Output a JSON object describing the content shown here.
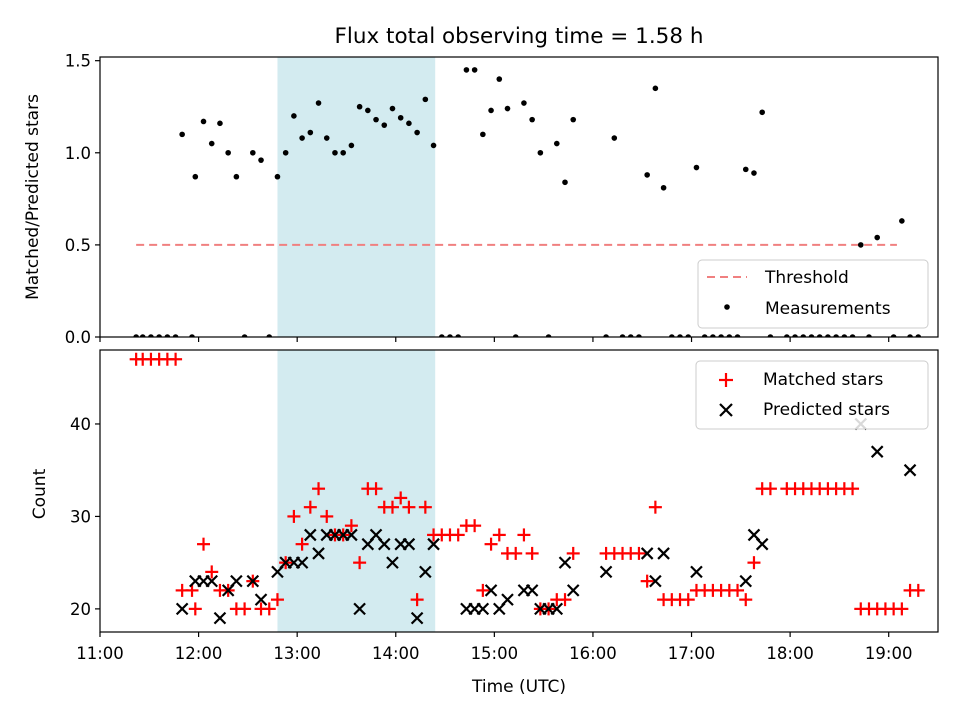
{
  "chart_data": [
    {
      "type": "scatter",
      "title": "Flux total observing time = 1.58 h",
      "ylabel": "Matched/Predicted stars",
      "ylim": [
        0,
        1.52
      ],
      "yticks": [
        "0.0",
        "0.5",
        "1.0",
        "1.5"
      ],
      "shaded_span": {
        "start": "12:48",
        "end": "14:24",
        "color": "#d3ebf0"
      },
      "legend": {
        "position": "lower-right",
        "entries": [
          {
            "name": "Threshold",
            "color": "#f08080"
          },
          {
            "name": "Measurements",
            "color": "#000000"
          }
        ]
      },
      "threshold": {
        "name": "Threshold",
        "value": 0.5,
        "x_start": "11:22",
        "x_end": "19:05",
        "color": "#f08080"
      },
      "measurements": {
        "name": "Measurements",
        "color": "#000000",
        "points": [
          [
            "11:22",
            0
          ],
          [
            "11:26",
            0
          ],
          [
            "11:31",
            0
          ],
          [
            "11:36",
            0
          ],
          [
            "11:41",
            0
          ],
          [
            "11:46",
            0
          ],
          [
            "11:56",
            0
          ],
          [
            "11:50",
            1.1
          ],
          [
            "11:58",
            0.87
          ],
          [
            "12:03",
            1.17
          ],
          [
            "12:08",
            1.05
          ],
          [
            "12:13",
            1.16
          ],
          [
            "12:18",
            1.0
          ],
          [
            "12:23",
            0.87
          ],
          [
            "12:28",
            0
          ],
          [
            "12:33",
            1.0
          ],
          [
            "12:38",
            0.96
          ],
          [
            "12:43",
            0
          ],
          [
            "12:48",
            0.87
          ],
          [
            "12:53",
            1.0
          ],
          [
            "12:58",
            1.2
          ],
          [
            "13:03",
            1.08
          ],
          [
            "13:08",
            1.11
          ],
          [
            "13:13",
            1.27
          ],
          [
            "13:18",
            1.08
          ],
          [
            "13:23",
            1.0
          ],
          [
            "13:28",
            1.0
          ],
          [
            "13:33",
            1.04
          ],
          [
            "13:38",
            1.25
          ],
          [
            "13:43",
            1.23
          ],
          [
            "13:48",
            1.18
          ],
          [
            "13:53",
            1.15
          ],
          [
            "13:58",
            1.24
          ],
          [
            "14:03",
            1.19
          ],
          [
            "14:08",
            1.16
          ],
          [
            "14:13",
            1.11
          ],
          [
            "14:18",
            1.29
          ],
          [
            "14:23",
            1.04
          ],
          [
            "14:28",
            0
          ],
          [
            "14:33",
            0
          ],
          [
            "14:38",
            0
          ],
          [
            "14:43",
            1.45
          ],
          [
            "14:48",
            1.45
          ],
          [
            "14:53",
            1.1
          ],
          [
            "14:58",
            1.23
          ],
          [
            "15:03",
            1.4
          ],
          [
            "15:08",
            1.24
          ],
          [
            "15:13",
            0
          ],
          [
            "15:18",
            1.27
          ],
          [
            "15:23",
            1.18
          ],
          [
            "15:28",
            1.0
          ],
          [
            "15:33",
            0
          ],
          [
            "15:38",
            1.05
          ],
          [
            "15:43",
            0.84
          ],
          [
            "15:48",
            1.18
          ],
          [
            "16:08",
            0
          ],
          [
            "16:13",
            1.08
          ],
          [
            "16:18",
            0
          ],
          [
            "16:23",
            0
          ],
          [
            "16:28",
            0
          ],
          [
            "16:33",
            0.88
          ],
          [
            "16:38",
            1.35
          ],
          [
            "16:43",
            0.81
          ],
          [
            "16:48",
            0
          ],
          [
            "16:53",
            0
          ],
          [
            "16:58",
            0
          ],
          [
            "17:03",
            0.92
          ],
          [
            "17:08",
            0
          ],
          [
            "17:13",
            0
          ],
          [
            "17:18",
            0
          ],
          [
            "17:23",
            0
          ],
          [
            "17:28",
            0
          ],
          [
            "17:33",
            0.91
          ],
          [
            "17:38",
            0.89
          ],
          [
            "17:43",
            1.22
          ],
          [
            "17:48",
            0
          ],
          [
            "17:58",
            0
          ],
          [
            "18:03",
            0
          ],
          [
            "18:08",
            0
          ],
          [
            "18:13",
            0
          ],
          [
            "18:18",
            0
          ],
          [
            "18:23",
            0
          ],
          [
            "18:28",
            0
          ],
          [
            "18:33",
            0
          ],
          [
            "18:38",
            0
          ],
          [
            "18:43",
            0.5
          ],
          [
            "18:48",
            0
          ],
          [
            "18:53",
            0.54
          ],
          [
            "19:03",
            0
          ],
          [
            "19:08",
            0.63
          ],
          [
            "19:13",
            0
          ],
          [
            "19:18",
            0
          ]
        ]
      }
    },
    {
      "type": "scatter",
      "xlabel": "Time (UTC)",
      "ylabel": "Count",
      "xlim": [
        "11:00",
        "19:30"
      ],
      "xticks": [
        "11:00",
        "12:00",
        "13:00",
        "14:00",
        "15:00",
        "16:00",
        "17:00",
        "18:00",
        "19:00"
      ],
      "ylim": [
        17.5,
        48
      ],
      "yticks": [
        "20",
        "30",
        "40"
      ],
      "shaded_span": {
        "start": "12:48",
        "end": "14:24",
        "color": "#d3ebf0"
      },
      "legend": {
        "position": "upper-right",
        "entries": [
          {
            "name": "Matched stars",
            "color": "#ff0000"
          },
          {
            "name": "Predicted stars",
            "color": "#000000"
          }
        ]
      },
      "series": [
        {
          "name": "Matched stars",
          "marker": "plus",
          "color": "#ff0000",
          "points": [
            [
              "11:22",
              47
            ],
            [
              "11:26",
              47
            ],
            [
              "11:31",
              47
            ],
            [
              "11:36",
              47
            ],
            [
              "11:41",
              47
            ],
            [
              "11:46",
              47
            ],
            [
              "11:50",
              22
            ],
            [
              "11:56",
              22
            ],
            [
              "11:58",
              20
            ],
            [
              "12:03",
              27
            ],
            [
              "12:08",
              24
            ],
            [
              "12:13",
              22
            ],
            [
              "12:18",
              22
            ],
            [
              "12:23",
              20
            ],
            [
              "12:28",
              20
            ],
            [
              "12:33",
              23
            ],
            [
              "12:38",
              20
            ],
            [
              "12:43",
              20
            ],
            [
              "12:48",
              21
            ],
            [
              "12:53",
              25
            ],
            [
              "12:58",
              30
            ],
            [
              "13:03",
              27
            ],
            [
              "13:08",
              31
            ],
            [
              "13:13",
              33
            ],
            [
              "13:18",
              30
            ],
            [
              "13:23",
              28
            ],
            [
              "13:28",
              28
            ],
            [
              "13:33",
              29
            ],
            [
              "13:38",
              25
            ],
            [
              "13:43",
              33
            ],
            [
              "13:48",
              33
            ],
            [
              "13:53",
              31
            ],
            [
              "13:58",
              31
            ],
            [
              "14:03",
              32
            ],
            [
              "14:08",
              31
            ],
            [
              "14:13",
              21
            ],
            [
              "14:18",
              31
            ],
            [
              "14:23",
              28
            ],
            [
              "14:28",
              28
            ],
            [
              "14:33",
              28
            ],
            [
              "14:38",
              28
            ],
            [
              "14:43",
              29
            ],
            [
              "14:48",
              29
            ],
            [
              "14:53",
              22
            ],
            [
              "14:58",
              27
            ],
            [
              "15:03",
              28
            ],
            [
              "15:08",
              26
            ],
            [
              "15:13",
              26
            ],
            [
              "15:18",
              28
            ],
            [
              "15:23",
              26
            ],
            [
              "15:28",
              20
            ],
            [
              "15:33",
              20
            ],
            [
              "15:38",
              21
            ],
            [
              "15:43",
              21
            ],
            [
              "15:48",
              26
            ],
            [
              "16:08",
              26
            ],
            [
              "16:13",
              26
            ],
            [
              "16:18",
              26
            ],
            [
              "16:23",
              26
            ],
            [
              "16:28",
              26
            ],
            [
              "16:33",
              23
            ],
            [
              "16:38",
              31
            ],
            [
              "16:43",
              21
            ],
            [
              "16:48",
              21
            ],
            [
              "16:53",
              21
            ],
            [
              "16:58",
              21
            ],
            [
              "17:03",
              22
            ],
            [
              "17:08",
              22
            ],
            [
              "17:13",
              22
            ],
            [
              "17:18",
              22
            ],
            [
              "17:23",
              22
            ],
            [
              "17:28",
              22
            ],
            [
              "17:33",
              21
            ],
            [
              "17:38",
              25
            ],
            [
              "17:43",
              33
            ],
            [
              "17:48",
              33
            ],
            [
              "17:58",
              33
            ],
            [
              "18:03",
              33
            ],
            [
              "18:08",
              33
            ],
            [
              "18:13",
              33
            ],
            [
              "18:18",
              33
            ],
            [
              "18:23",
              33
            ],
            [
              "18:28",
              33
            ],
            [
              "18:33",
              33
            ],
            [
              "18:38",
              33
            ],
            [
              "18:43",
              20
            ],
            [
              "18:48",
              20
            ],
            [
              "18:53",
              20
            ],
            [
              "18:58",
              20
            ],
            [
              "19:03",
              20
            ],
            [
              "19:08",
              20
            ],
            [
              "19:13",
              22
            ],
            [
              "19:18",
              22
            ]
          ]
        },
        {
          "name": "Predicted stars",
          "marker": "x",
          "color": "#000000",
          "points": [
            [
              "11:50",
              20
            ],
            [
              "11:58",
              23
            ],
            [
              "12:03",
              23
            ],
            [
              "12:08",
              23
            ],
            [
              "12:13",
              19
            ],
            [
              "12:18",
              22
            ],
            [
              "12:23",
              23
            ],
            [
              "12:33",
              23
            ],
            [
              "12:38",
              21
            ],
            [
              "12:48",
              24
            ],
            [
              "12:53",
              25
            ],
            [
              "12:58",
              25
            ],
            [
              "13:03",
              25
            ],
            [
              "13:08",
              28
            ],
            [
              "13:13",
              26
            ],
            [
              "13:18",
              28
            ],
            [
              "13:23",
              28
            ],
            [
              "13:28",
              28
            ],
            [
              "13:33",
              28
            ],
            [
              "13:38",
              20
            ],
            [
              "13:43",
              27
            ],
            [
              "13:48",
              28
            ],
            [
              "13:53",
              27
            ],
            [
              "13:58",
              25
            ],
            [
              "14:03",
              27
            ],
            [
              "14:08",
              27
            ],
            [
              "14:13",
              19
            ],
            [
              "14:18",
              24
            ],
            [
              "14:23",
              27
            ],
            [
              "14:43",
              20
            ],
            [
              "14:48",
              20
            ],
            [
              "14:53",
              20
            ],
            [
              "14:58",
              22
            ],
            [
              "15:03",
              20
            ],
            [
              "15:08",
              21
            ],
            [
              "15:18",
              22
            ],
            [
              "15:23",
              22
            ],
            [
              "15:28",
              20
            ],
            [
              "15:33",
              20
            ],
            [
              "15:38",
              20
            ],
            [
              "15:43",
              25
            ],
            [
              "15:48",
              22
            ],
            [
              "16:08",
              24
            ],
            [
              "16:33",
              26
            ],
            [
              "16:38",
              23
            ],
            [
              "16:43",
              26
            ],
            [
              "17:03",
              24
            ],
            [
              "17:33",
              23
            ],
            [
              "17:38",
              28
            ],
            [
              "17:43",
              27
            ],
            [
              "18:43",
              40
            ],
            [
              "18:53",
              37
            ],
            [
              "19:13",
              35
            ]
          ]
        }
      ]
    }
  ]
}
